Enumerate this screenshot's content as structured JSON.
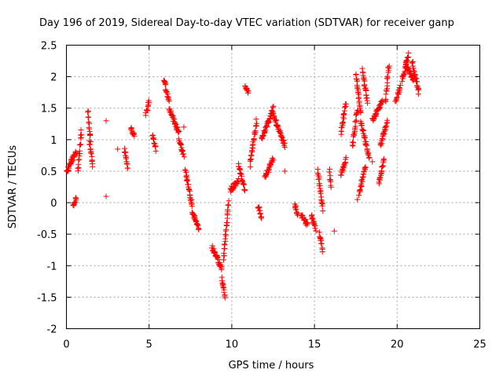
{
  "chart_data": {
    "type": "scatter",
    "title": "Day 196 of 2019, Sidereal Day-to-day VTEC variation (SDTVAR) for receiver ganp",
    "xlabel": "GPS time / hours",
    "ylabel": "SDTVAR / TECUs",
    "xlim": [
      0,
      25
    ],
    "ylim": [
      -2,
      2.5
    ],
    "xticks": [
      0,
      5,
      10,
      15,
      20,
      25
    ],
    "yticks": [
      -2,
      -1.5,
      -1,
      -0.5,
      0,
      0.5,
      1,
      1.5,
      2,
      2.5
    ],
    "grid": true,
    "marker": "+",
    "color": "#ff0000",
    "series": [
      {
        "name": "SDTVAR",
        "segments": [
          {
            "x0": 0.0,
            "x1": 0.3,
            "y0": 0.5,
            "y1": 0.65
          },
          {
            "x0": 0.3,
            "x1": 0.6,
            "y0": 0.65,
            "y1": 0.8
          },
          {
            "x0": 0.4,
            "x1": 0.6,
            "y0": -0.05,
            "y1": 0.08
          },
          {
            "x0": 0.7,
            "x1": 0.9,
            "y0": 0.5,
            "y1": 1.15
          },
          {
            "x0": 1.3,
            "x1": 1.45,
            "y0": 1.45,
            "y1": 1.0
          },
          {
            "x0": 1.4,
            "x1": 1.6,
            "y0": 0.95,
            "y1": 0.6
          },
          {
            "x0": 3.5,
            "x1": 3.7,
            "y0": 0.85,
            "y1": 0.55
          },
          {
            "x0": 3.9,
            "x1": 4.1,
            "y0": 1.2,
            "y1": 1.05
          },
          {
            "x0": 4.8,
            "x1": 5.0,
            "y0": 1.4,
            "y1": 1.6
          },
          {
            "x0": 5.2,
            "x1": 5.4,
            "y0": 1.05,
            "y1": 0.85
          },
          {
            "x0": 5.9,
            "x1": 6.2,
            "y0": 1.95,
            "y1": 1.6
          },
          {
            "x0": 6.2,
            "x1": 6.8,
            "y0": 1.5,
            "y1": 1.1
          },
          {
            "x0": 6.8,
            "x1": 7.1,
            "y0": 1.0,
            "y1": 0.75
          },
          {
            "x0": 7.2,
            "x1": 7.6,
            "y0": 0.5,
            "y1": -0.05
          },
          {
            "x0": 7.6,
            "x1": 8.0,
            "y0": -0.15,
            "y1": -0.4
          },
          {
            "x0": 8.8,
            "x1": 9.4,
            "y0": -0.7,
            "y1": -1.05
          },
          {
            "x0": 9.4,
            "x1": 9.6,
            "y0": -1.2,
            "y1": -1.5
          },
          {
            "x0": 9.5,
            "x1": 9.8,
            "y0": -0.9,
            "y1": 0.0
          },
          {
            "x0": 9.9,
            "x1": 10.4,
            "y0": 0.2,
            "y1": 0.35
          },
          {
            "x0": 10.4,
            "x1": 10.8,
            "y0": 0.6,
            "y1": 0.2
          },
          {
            "x0": 10.8,
            "x1": 11.0,
            "y0": 1.85,
            "y1": 1.75
          },
          {
            "x0": 11.1,
            "x1": 11.5,
            "y0": 0.6,
            "y1": 1.3
          },
          {
            "x0": 11.6,
            "x1": 11.8,
            "y0": -0.05,
            "y1": -0.25
          },
          {
            "x0": 11.8,
            "x1": 12.5,
            "y0": 1.0,
            "y1": 1.5
          },
          {
            "x0": 12.0,
            "x1": 12.5,
            "y0": 0.4,
            "y1": 0.7
          },
          {
            "x0": 12.5,
            "x1": 13.2,
            "y0": 1.4,
            "y1": 0.9
          },
          {
            "x0": 13.8,
            "x1": 14.0,
            "y0": 0.0,
            "y1": -0.2
          },
          {
            "x0": 14.2,
            "x1": 14.6,
            "y0": -0.2,
            "y1": -0.35
          },
          {
            "x0": 14.8,
            "x1": 15.1,
            "y0": -0.2,
            "y1": -0.45
          },
          {
            "x0": 15.2,
            "x1": 15.5,
            "y0": 0.5,
            "y1": -0.1
          },
          {
            "x0": 15.3,
            "x1": 15.5,
            "y0": -0.5,
            "y1": -0.75
          },
          {
            "x0": 15.9,
            "x1": 16.0,
            "y0": 0.5,
            "y1": 0.25
          },
          {
            "x0": 16.6,
            "x1": 16.9,
            "y0": 0.45,
            "y1": 0.7
          },
          {
            "x0": 16.6,
            "x1": 16.9,
            "y0": 1.1,
            "y1": 1.6
          },
          {
            "x0": 17.3,
            "x1": 17.6,
            "y0": 0.9,
            "y1": 1.5
          },
          {
            "x0": 17.5,
            "x1": 17.8,
            "y0": 2.05,
            "y1": 1.4
          },
          {
            "x0": 17.7,
            "x1": 18.1,
            "y0": 0.15,
            "y1": 0.6
          },
          {
            "x0": 17.8,
            "x1": 18.3,
            "y0": 1.3,
            "y1": 0.7
          },
          {
            "x0": 17.9,
            "x1": 18.2,
            "y0": 2.1,
            "y1": 1.6
          },
          {
            "x0": 18.5,
            "x1": 19.1,
            "y0": 1.3,
            "y1": 1.6
          },
          {
            "x0": 18.9,
            "x1": 19.2,
            "y0": 0.3,
            "y1": 0.7
          },
          {
            "x0": 19.0,
            "x1": 19.4,
            "y0": 0.9,
            "y1": 1.3
          },
          {
            "x0": 19.3,
            "x1": 19.5,
            "y0": 1.6,
            "y1": 2.2
          },
          {
            "x0": 19.9,
            "x1": 20.2,
            "y0": 1.6,
            "y1": 1.85
          },
          {
            "x0": 20.3,
            "x1": 20.7,
            "y0": 1.95,
            "y1": 2.35
          },
          {
            "x0": 20.5,
            "x1": 21.0,
            "y0": 2.2,
            "y1": 1.95
          },
          {
            "x0": 20.9,
            "x1": 21.3,
            "y0": 2.25,
            "y1": 1.75
          }
        ],
        "isolated_points": [
          {
            "x": 2.4,
            "y": 1.3
          },
          {
            "x": 2.4,
            "y": 0.1
          },
          {
            "x": 3.1,
            "y": 0.85
          },
          {
            "x": 7.1,
            "y": 1.2
          },
          {
            "x": 13.2,
            "y": 0.5
          },
          {
            "x": 16.2,
            "y": -0.45
          },
          {
            "x": 18.5,
            "y": 0.65
          },
          {
            "x": 17.6,
            "y": 0.05
          }
        ]
      }
    ]
  }
}
